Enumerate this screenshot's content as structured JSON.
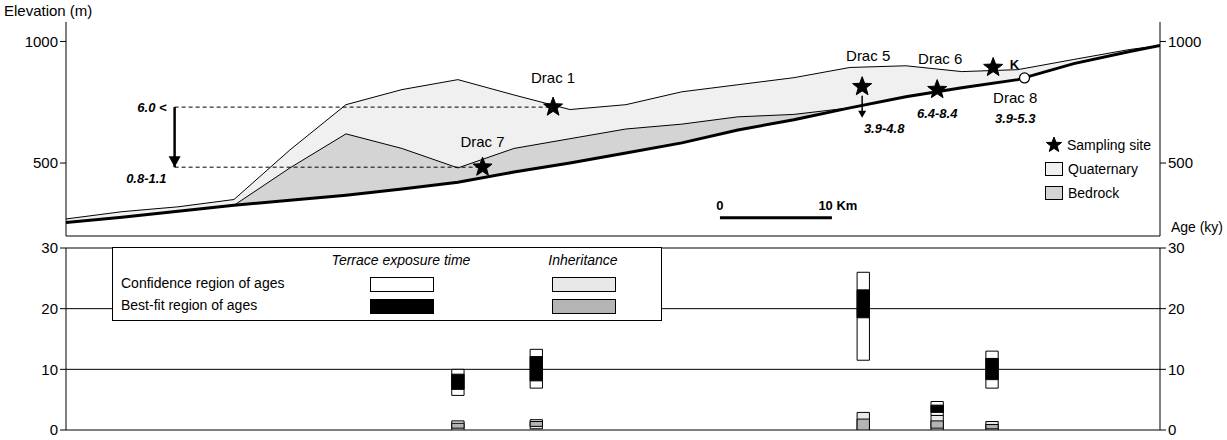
{
  "chart_data": [
    {
      "type": "profile",
      "y_label": "Elevation (m)",
      "xlim": [
        0,
        97.7
      ],
      "ylim": [
        200,
        1080
      ],
      "yticks": [
        500,
        1000
      ],
      "tick_labels": "y",
      "x": [
        0,
        5,
        10,
        15,
        20,
        25,
        30,
        35,
        40,
        45,
        50,
        55,
        60,
        65,
        70,
        75,
        80,
        85,
        90,
        95,
        97.7
      ],
      "base_values": [
        256,
        277,
        302,
        326,
        347,
        368,
        393,
        421,
        463,
        500,
        541,
        583,
        636,
        678,
        727,
        773,
        810,
        843,
        909,
        959,
        983
      ],
      "series": [
        {
          "name": "Quaternary",
          "color": "#f0f0f0",
          "values": [
            270,
            300,
            320,
            350,
            554,
            740,
            802,
            843,
            780,
            720,
            740,
            793,
            822,
            851,
            893,
            900,
            876,
            884,
            926,
            967,
            983
          ]
        },
        {
          "name": "Bedrock",
          "color": "#d4d4d4",
          "values": [
            256,
            277,
            302,
            326,
            480,
            620,
            560,
            480,
            560,
            600,
            640,
            660,
            690,
            700,
            727,
            773,
            810,
            843,
            909,
            959,
            983
          ]
        }
      ],
      "marker": "star",
      "marker_label": "Sampling site",
      "samples": [
        {
          "name": "Drac 1",
          "x": 43.5,
          "elevation": 730,
          "label": "6.0 <"
        },
        {
          "name": "Drac 7",
          "x": 37.2,
          "elevation": 483,
          "label": "0.8-1.1"
        },
        {
          "name": "Drac 5",
          "x": 71.1,
          "elevation": 814,
          "label": "3.9-4.8"
        },
        {
          "name": "Drac 6",
          "x": 77.8,
          "elevation": 802,
          "label": "6.4-8.4"
        },
        {
          "name": "Drac 8",
          "x": 82.8,
          "elevation": 893,
          "label": "3.9-5.3"
        }
      ],
      "site": {
        "label": "K",
        "x": 85.6,
        "elevation": 850
      },
      "scale_bar": {
        "x": 58.4,
        "elevation": 275,
        "length": 10,
        "labels": [
          "0",
          "10 Km"
        ]
      }
    },
    {
      "type": "range_bar",
      "y_label": "Age (ky)",
      "xlim": [
        0,
        97.7
      ],
      "ylim": [
        0,
        30
      ],
      "yticks": [
        0,
        10,
        20,
        30
      ],
      "grid": true,
      "tick_labels": "y",
      "x": [
        35,
        42,
        71.2,
        77.8,
        82.7
      ],
      "series": [
        {
          "group": "Terrace exposure time",
          "region": "Confidence region of ages",
          "color": "#ffffff",
          "values": [
            [
              5.7,
              10
            ],
            [
              6.9,
              13.3
            ],
            [
              11.5,
              26
            ],
            [
              2.4,
              4.7
            ],
            [
              6.9,
              13
            ]
          ]
        },
        {
          "group": "Terrace exposure time",
          "region": "Best-fit region of ages",
          "color": "#000000",
          "values": [
            [
              6.7,
              9.2
            ],
            [
              8.1,
              12.1
            ],
            [
              18.5,
              23.1
            ],
            [
              2.9,
              4.1
            ],
            [
              8.3,
              11.8
            ]
          ]
        },
        {
          "group": "Inheritance",
          "region": "Confidence region of ages",
          "color": "#e8e8e8",
          "values": [
            [
              0,
              1.5
            ],
            [
              0.2,
              1.7
            ],
            [
              0,
              2.9
            ],
            [
              0,
              2.4
            ],
            [
              0,
              1.4
            ]
          ]
        },
        {
          "group": "Inheritance",
          "region": "Best-fit region of ages",
          "color": "#b4b4b4",
          "values": [
            [
              0.3,
              1.1
            ],
            [
              0.6,
              1.4
            ],
            [
              0,
              1.8
            ],
            [
              0.3,
              1.5
            ],
            [
              0.2,
              0.9
            ]
          ]
        }
      ]
    }
  ]
}
